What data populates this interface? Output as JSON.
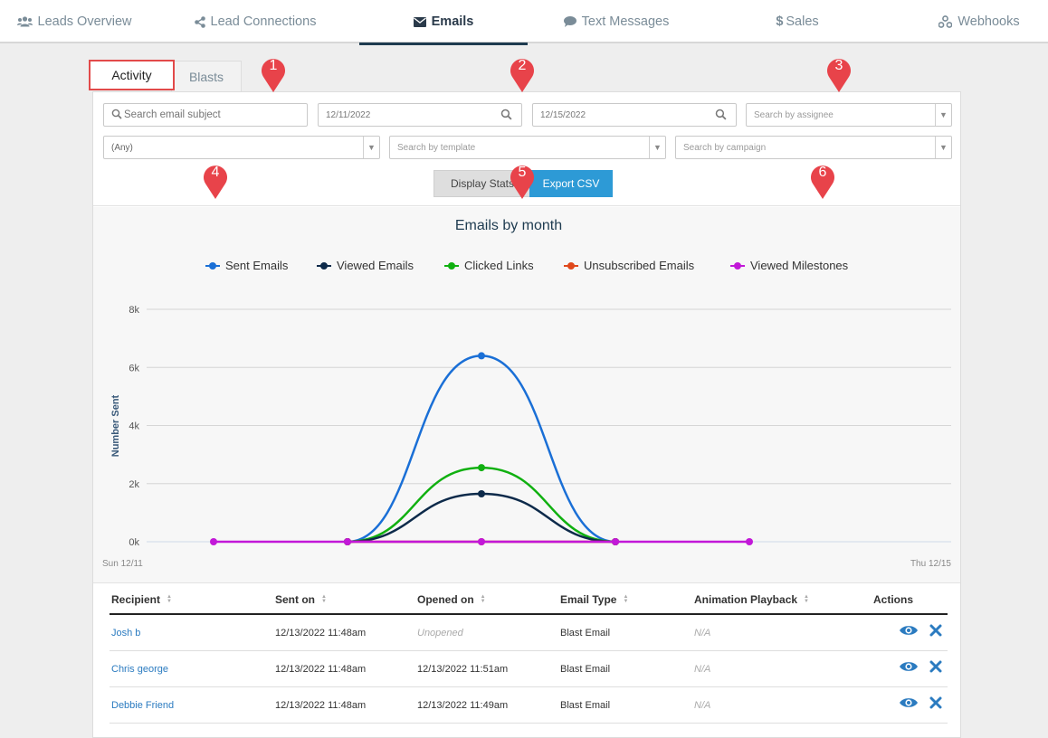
{
  "nav": {
    "items": [
      {
        "label": "Leads Overview",
        "icon": "users-icon",
        "active": false
      },
      {
        "label": "Lead Connections",
        "icon": "share-icon",
        "active": false
      },
      {
        "label": "Emails",
        "icon": "envelope-icon",
        "active": true
      },
      {
        "label": "Text Messages",
        "icon": "comment-icon",
        "active": false
      },
      {
        "label": "Sales",
        "icon": "dollar-icon",
        "active": false
      },
      {
        "label": "Webhooks",
        "icon": "webhook-icon",
        "active": false
      }
    ]
  },
  "tabs": {
    "activity": "Activity",
    "blasts": "Blasts"
  },
  "filters": {
    "subject_placeholder": "Search email subject",
    "date_from": "12/11/2022",
    "date_to": "12/15/2022",
    "assignee_placeholder": "Search by assignee",
    "type_value": "(Any)",
    "template_placeholder": "Search by template",
    "campaign_placeholder": "Search by campaign"
  },
  "buttons": {
    "display_stats": "Display Stats",
    "export_csv": "Export CSV"
  },
  "markers": [
    "1",
    "2",
    "3",
    "4",
    "5",
    "6"
  ],
  "colors": {
    "accent": "#2d9ad6",
    "nav_active": "#1e3b50",
    "marker": "#e8434a"
  },
  "chart_data": {
    "type": "line",
    "title": "Emails by month",
    "ylabel": "Number Sent",
    "xlabel": "",
    "ylim": [
      0,
      8000
    ],
    "y_ticks": [
      "0k",
      "2k",
      "4k",
      "6k",
      "8k"
    ],
    "x_range_labels": [
      "Sun 12/11",
      "Thu 12/15"
    ],
    "legend_position": "top",
    "grid": true,
    "series": [
      {
        "name": "Sent Emails",
        "color": "#1a6fd6",
        "values": [
          null,
          0,
          6400,
          0,
          null
        ]
      },
      {
        "name": "Viewed Emails",
        "color": "#0d2a4a",
        "values": [
          null,
          0,
          1650,
          0,
          null
        ]
      },
      {
        "name": "Clicked Links",
        "color": "#10b010",
        "values": [
          null,
          0,
          2550,
          0,
          null
        ]
      },
      {
        "name": "Unsubscribed Emails",
        "color": "#e0481b",
        "values": [
          null,
          0,
          0,
          0,
          null
        ]
      },
      {
        "name": "Viewed Milestones",
        "color": "#c218d8",
        "values": [
          0,
          0,
          0,
          0,
          0
        ]
      }
    ]
  },
  "table": {
    "headers": [
      "Recipient",
      "Sent on",
      "Opened on",
      "Email Type",
      "Animation Playback",
      "Actions"
    ],
    "rows": [
      {
        "recipient": "Josh b",
        "sent": "12/13/2022 11:48am",
        "opened": "Unopened",
        "type": "Blast Email",
        "playback": "N/A"
      },
      {
        "recipient": "Chris george",
        "sent": "12/13/2022 11:48am",
        "opened": "12/13/2022 11:51am",
        "type": "Blast Email",
        "playback": "N/A"
      },
      {
        "recipient": "Debbie Friend",
        "sent": "12/13/2022 11:48am",
        "opened": "12/13/2022 11:49am",
        "type": "Blast Email",
        "playback": "N/A"
      }
    ]
  }
}
